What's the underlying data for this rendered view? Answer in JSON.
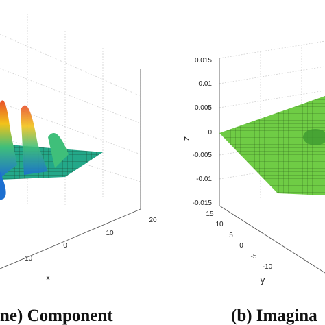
{
  "panels": [
    {
      "axes": {
        "x": {
          "label": "x",
          "ticks": [
            "20",
            "10",
            "0",
            "-10"
          ]
        }
      },
      "caption": "ne) Component"
    },
    {
      "axes": {
        "z": {
          "label": "z",
          "ticks": [
            "0.015",
            "0.01",
            "0.005",
            "0",
            "-0.005",
            "-0.01",
            "-0.015"
          ]
        },
        "y": {
          "label": "y",
          "ticks": [
            "15",
            "10",
            "5",
            "0",
            "-5",
            "-10"
          ]
        }
      },
      "caption": "(b) Imagina"
    }
  ]
}
